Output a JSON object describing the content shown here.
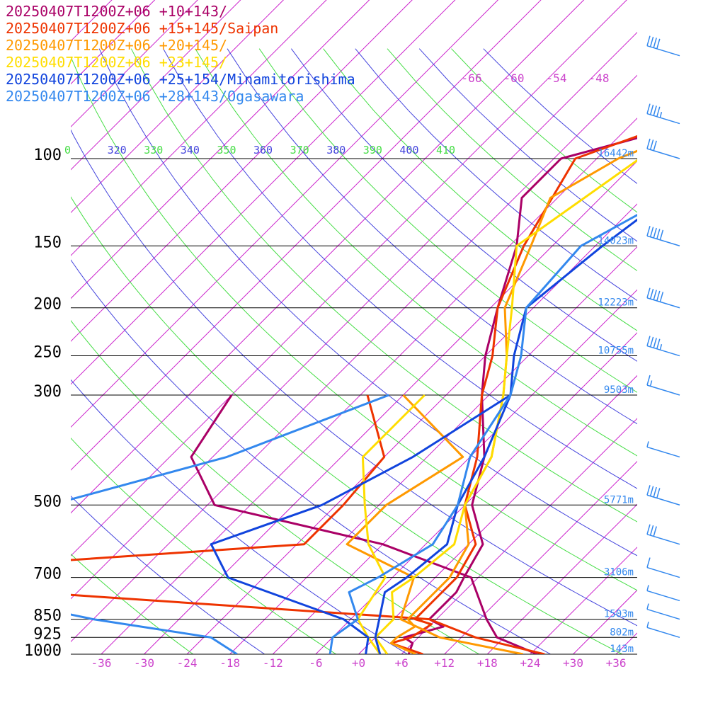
{
  "chart_data": {
    "type": "line",
    "title": "",
    "xlabel": "",
    "ylabel": "",
    "pressure_levels": [
      {
        "p": 100,
        "label": "100",
        "height": "16442m"
      },
      {
        "p": 150,
        "label": "150",
        "height": "14023m"
      },
      {
        "p": 200,
        "label": "200",
        "height": "12223m"
      },
      {
        "p": 250,
        "label": "250",
        "height": "10755m"
      },
      {
        "p": 300,
        "label": "300",
        "height": "9503m"
      },
      {
        "p": 500,
        "label": "500",
        "height": "5771m"
      },
      {
        "p": 700,
        "label": "700",
        "height": "3106m"
      },
      {
        "p": 850,
        "label": "850",
        "height": "1503m"
      },
      {
        "p": 925,
        "label": "925",
        "height": "802m"
      },
      {
        "p": 1000,
        "label": "1000",
        "height": "143m"
      }
    ],
    "x_ticks": [
      {
        "v": -36,
        "label": "-36"
      },
      {
        "v": -30,
        "label": "-30"
      },
      {
        "v": -24,
        "label": "-24"
      },
      {
        "v": -18,
        "label": "-18"
      },
      {
        "v": -12,
        "label": "-12"
      },
      {
        "v": -6,
        "label": "-6"
      },
      {
        "v": 0,
        "label": "+0"
      },
      {
        "v": 6,
        "label": "+6"
      },
      {
        "v": 12,
        "label": "+12"
      },
      {
        "v": 18,
        "label": "+18"
      },
      {
        "v": 24,
        "label": "+24"
      },
      {
        "v": 30,
        "label": "+30"
      },
      {
        "v": 36,
        "label": "+36"
      }
    ],
    "isotherm_top_labels": [
      "-66",
      "-60",
      "-54",
      "-48"
    ],
    "theta_labels": [
      {
        "label": "0",
        "color": "#44dd44"
      },
      {
        "label": "320",
        "color": "#4444dd"
      },
      {
        "label": "330",
        "color": "#44dd44"
      },
      {
        "label": "340",
        "color": "#4444dd"
      },
      {
        "label": "350",
        "color": "#44dd44"
      },
      {
        "label": "360",
        "color": "#4444dd"
      },
      {
        "label": "370",
        "color": "#44dd44"
      },
      {
        "label": "380",
        "color": "#4444dd"
      },
      {
        "label": "390",
        "color": "#44dd44"
      },
      {
        "label": "400",
        "color": "#4444dd"
      },
      {
        "label": "410",
        "color": "#44dd44"
      }
    ],
    "series": [
      {
        "name": "20250407T1200Z+06 +10+143/",
        "color": "#aa0066",
        "temp": [
          [
            52,
            -4
          ],
          [
            60,
            -3
          ],
          [
            70,
            -12
          ],
          [
            100,
            -41
          ],
          [
            120,
            -41
          ],
          [
            150,
            -35
          ],
          [
            200,
            -29
          ],
          [
            250,
            -24
          ],
          [
            300,
            -19
          ],
          [
            400,
            -10
          ],
          [
            500,
            -5
          ],
          [
            600,
            2
          ],
          [
            700,
            4
          ],
          [
            750,
            5
          ],
          [
            850,
            5
          ],
          [
            880,
            8
          ],
          [
            925,
            4
          ],
          [
            950,
            6
          ],
          [
            1000,
            7
          ]
        ],
        "dew": [
          [
            300,
            -54
          ],
          [
            400,
            -51
          ],
          [
            500,
            -41
          ],
          [
            600,
            -12
          ],
          [
            700,
            5
          ],
          [
            850,
            13
          ],
          [
            925,
            17
          ],
          [
            1000,
            25
          ]
        ]
      },
      {
        "name": "20250407T1200Z+06 +15+145/Saipan",
        "color": "#ee3300",
        "temp": [
          [
            52,
            -1
          ],
          [
            70,
            -20
          ],
          [
            100,
            -39
          ],
          [
            150,
            -34
          ],
          [
            200,
            -29
          ],
          [
            250,
            -23
          ],
          [
            300,
            -19
          ],
          [
            400,
            -11
          ],
          [
            500,
            -6
          ],
          [
            600,
            1
          ],
          [
            700,
            3
          ],
          [
            750,
            3
          ],
          [
            850,
            3
          ],
          [
            870,
            6
          ],
          [
            925,
            5
          ],
          [
            950,
            3
          ],
          [
            1000,
            9
          ]
        ],
        "dew": [
          [
            300,
            -35
          ],
          [
            400,
            -24
          ],
          [
            500,
            -23
          ],
          [
            600,
            -23
          ],
          [
            700,
            -87
          ],
          [
            850,
            5
          ],
          [
            925,
            14
          ],
          [
            1000,
            26
          ]
        ]
      },
      {
        "name": "20250407T1200Z+06 +20+145/",
        "color": "#ff9900",
        "temp": [
          [
            52,
            1
          ],
          [
            70,
            -17
          ],
          [
            100,
            -33
          ],
          [
            120,
            -37
          ],
          [
            150,
            -33
          ],
          [
            200,
            -28
          ],
          [
            250,
            -21
          ],
          [
            300,
            -16
          ],
          [
            400,
            -9
          ],
          [
            500,
            -6
          ],
          [
            600,
            0
          ],
          [
            700,
            2
          ],
          [
            750,
            2
          ],
          [
            850,
            2
          ],
          [
            880,
            4
          ],
          [
            925,
            3
          ],
          [
            950,
            3
          ],
          [
            1000,
            8
          ]
        ],
        "dew": [
          [
            300,
            -30
          ],
          [
            400,
            -13
          ],
          [
            500,
            -17
          ],
          [
            600,
            -17
          ],
          [
            700,
            -3
          ],
          [
            850,
            1
          ],
          [
            925,
            9
          ],
          [
            1000,
            23
          ]
        ]
      },
      {
        "name": "20250407T1200Z+06 +23+145/",
        "color": "#ffdd00",
        "temp": [
          [
            52,
            2
          ],
          [
            70,
            -10
          ],
          [
            100,
            -30
          ],
          [
            150,
            -35
          ],
          [
            200,
            -27
          ],
          [
            250,
            -21
          ],
          [
            300,
            -16
          ],
          [
            400,
            -9
          ],
          [
            500,
            -6
          ],
          [
            600,
            -2
          ],
          [
            700,
            -3
          ],
          [
            750,
            -4
          ],
          [
            850,
            0
          ],
          [
            925,
            0
          ],
          [
            1000,
            4
          ]
        ],
        "dew": [
          [
            300,
            -27
          ],
          [
            400,
            -27
          ],
          [
            500,
            -20
          ],
          [
            600,
            -14
          ],
          [
            700,
            -7
          ],
          [
            850,
            -5
          ],
          [
            925,
            -1
          ],
          [
            1000,
            3
          ]
        ]
      },
      {
        "name": "20250407T1200Z+06 +25+154/Minamitorishima",
        "color": "#1144dd",
        "temp": [
          [
            52,
            3
          ],
          [
            70,
            -7
          ],
          [
            100,
            -19
          ],
          [
            150,
            -23
          ],
          [
            200,
            -25
          ],
          [
            250,
            -20
          ],
          [
            300,
            -15
          ],
          [
            400,
            -10
          ],
          [
            500,
            -7
          ],
          [
            600,
            -3
          ],
          [
            700,
            -4
          ],
          [
            750,
            -5
          ],
          [
            850,
            -2
          ],
          [
            925,
            0
          ],
          [
            1000,
            3
          ]
        ],
        "dew": [
          [
            300,
            -15
          ],
          [
            400,
            -20
          ],
          [
            500,
            -26
          ],
          [
            600,
            -36
          ],
          [
            700,
            -29
          ],
          [
            850,
            -7
          ],
          [
            925,
            -1
          ],
          [
            1000,
            1
          ]
        ]
      },
      {
        "name": "20250407T1200Z+06 +28+143/Ogasawara",
        "color": "#3388ee",
        "temp": [
          [
            52,
            6
          ],
          [
            70,
            -8
          ],
          [
            100,
            -16
          ],
          [
            150,
            -26
          ],
          [
            200,
            -25
          ],
          [
            250,
            -19
          ],
          [
            300,
            -15
          ],
          [
            400,
            -12
          ],
          [
            500,
            -7
          ],
          [
            600,
            -5
          ],
          [
            700,
            -8
          ],
          [
            750,
            -10
          ],
          [
            850,
            -5
          ],
          [
            925,
            -6
          ],
          [
            1000,
            -4
          ]
        ],
        "dew": [
          [
            300,
            -32
          ],
          [
            400,
            -46
          ],
          [
            500,
            -64
          ],
          [
            600,
            -70
          ],
          [
            700,
            -76
          ],
          [
            850,
            -42
          ],
          [
            925,
            -23
          ],
          [
            1000,
            -17
          ]
        ]
      }
    ],
    "wind_barbs": [
      {
        "p": 62,
        "spd": 40
      },
      {
        "p": 85,
        "spd": 45
      },
      {
        "p": 100,
        "spd": 30
      },
      {
        "p": 150,
        "spd": 50
      },
      {
        "p": 200,
        "spd": 50
      },
      {
        "p": 250,
        "spd": 45
      },
      {
        "p": 300,
        "spd": 15
      },
      {
        "p": 400,
        "spd": 5
      },
      {
        "p": 500,
        "spd": 40
      },
      {
        "p": 600,
        "spd": 30
      },
      {
        "p": 700,
        "spd": 10
      },
      {
        "p": 780,
        "spd": 5
      },
      {
        "p": 850,
        "spd": 5
      },
      {
        "p": 925,
        "spd": 5
      }
    ]
  }
}
